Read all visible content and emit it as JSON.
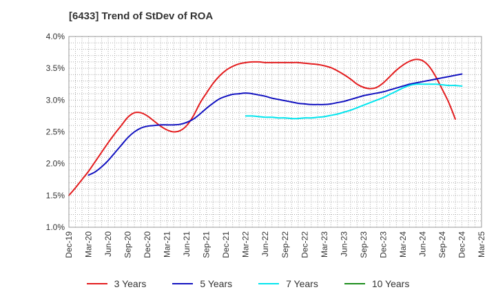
{
  "chart_data": {
    "type": "line",
    "title": "[6433]  Trend of StDev of ROA",
    "xlabel": "",
    "ylabel": "",
    "x_ticks": [
      "Dec-19",
      "Mar-20",
      "Jun-20",
      "Sep-20",
      "Dec-20",
      "Mar-21",
      "Jun-21",
      "Sep-21",
      "Dec-21",
      "Mar-22",
      "Jun-22",
      "Sep-22",
      "Dec-22",
      "Mar-23",
      "Jun-23",
      "Sep-23",
      "Dec-23",
      "Mar-24",
      "Jun-24",
      "Sep-24",
      "Dec-24",
      "Mar-25"
    ],
    "y_ticks": [
      "1.0%",
      "1.5%",
      "2.0%",
      "2.5%",
      "3.0%",
      "3.5%",
      "4.0%"
    ],
    "ylim": [
      1.0,
      4.0
    ],
    "grid": true,
    "legend_position": "bottom",
    "series": [
      {
        "name": "3 Years",
        "color": "#e31a1c",
        "points": [
          [
            "Dec-19",
            1.5
          ],
          [
            "Jan-20",
            1.62
          ],
          [
            "Feb-20",
            1.75
          ],
          [
            "Mar-20",
            1.88
          ],
          [
            "Apr-20",
            2.03
          ],
          [
            "May-20",
            2.18
          ],
          [
            "Jun-20",
            2.33
          ],
          [
            "Jul-20",
            2.47
          ],
          [
            "Aug-20",
            2.6
          ],
          [
            "Sep-20",
            2.73
          ],
          [
            "Oct-20",
            2.8
          ],
          [
            "Nov-20",
            2.8
          ],
          [
            "Dec-20",
            2.75
          ],
          [
            "Jan-21",
            2.67
          ],
          [
            "Feb-21",
            2.59
          ],
          [
            "Mar-21",
            2.53
          ],
          [
            "Apr-21",
            2.5
          ],
          [
            "May-21",
            2.52
          ],
          [
            "Jun-21",
            2.6
          ],
          [
            "Jul-21",
            2.75
          ],
          [
            "Aug-21",
            2.95
          ],
          [
            "Sep-21",
            3.11
          ],
          [
            "Oct-21",
            3.26
          ],
          [
            "Nov-21",
            3.38
          ],
          [
            "Dec-21",
            3.47
          ],
          [
            "Jan-22",
            3.53
          ],
          [
            "Feb-22",
            3.57
          ],
          [
            "Mar-22",
            3.59
          ],
          [
            "Apr-22",
            3.6
          ],
          [
            "May-22",
            3.6
          ],
          [
            "Jun-22",
            3.59
          ],
          [
            "Jul-22",
            3.59
          ],
          [
            "Aug-22",
            3.59
          ],
          [
            "Sep-22",
            3.59
          ],
          [
            "Oct-22",
            3.59
          ],
          [
            "Nov-22",
            3.59
          ],
          [
            "Dec-22",
            3.58
          ],
          [
            "Jan-23",
            3.57
          ],
          [
            "Feb-23",
            3.56
          ],
          [
            "Mar-23",
            3.54
          ],
          [
            "Apr-23",
            3.51
          ],
          [
            "May-23",
            3.46
          ],
          [
            "Jun-23",
            3.4
          ],
          [
            "Jul-23",
            3.33
          ],
          [
            "Aug-23",
            3.25
          ],
          [
            "Sep-23",
            3.2
          ],
          [
            "Oct-23",
            3.18
          ],
          [
            "Nov-23",
            3.2
          ],
          [
            "Dec-23",
            3.27
          ],
          [
            "Jan-24",
            3.37
          ],
          [
            "Feb-24",
            3.47
          ],
          [
            "Mar-24",
            3.55
          ],
          [
            "Apr-24",
            3.61
          ],
          [
            "May-24",
            3.64
          ],
          [
            "Jun-24",
            3.62
          ],
          [
            "Jul-24",
            3.53
          ],
          [
            "Aug-24",
            3.37
          ],
          [
            "Sep-24",
            3.17
          ],
          [
            "Oct-24",
            2.96
          ],
          [
            "Nov-24",
            2.7
          ]
        ]
      },
      {
        "name": "5 Years",
        "color": "#1010c0",
        "points": [
          [
            "Mar-20",
            1.82
          ],
          [
            "Apr-20",
            1.87
          ],
          [
            "May-20",
            1.95
          ],
          [
            "Jun-20",
            2.05
          ],
          [
            "Jul-20",
            2.17
          ],
          [
            "Aug-20",
            2.29
          ],
          [
            "Sep-20",
            2.41
          ],
          [
            "Oct-20",
            2.5
          ],
          [
            "Nov-20",
            2.56
          ],
          [
            "Dec-20",
            2.59
          ],
          [
            "Jan-21",
            2.6
          ],
          [
            "Feb-21",
            2.61
          ],
          [
            "Mar-21",
            2.61
          ],
          [
            "Apr-21",
            2.61
          ],
          [
            "May-21",
            2.62
          ],
          [
            "Jun-21",
            2.65
          ],
          [
            "Jul-21",
            2.7
          ],
          [
            "Aug-21",
            2.78
          ],
          [
            "Sep-21",
            2.87
          ],
          [
            "Oct-21",
            2.95
          ],
          [
            "Nov-21",
            3.02
          ],
          [
            "Dec-21",
            3.06
          ],
          [
            "Jan-22",
            3.09
          ],
          [
            "Feb-22",
            3.1
          ],
          [
            "Mar-22",
            3.11
          ],
          [
            "Apr-22",
            3.1
          ],
          [
            "May-22",
            3.08
          ],
          [
            "Jun-22",
            3.06
          ],
          [
            "Jul-22",
            3.03
          ],
          [
            "Aug-22",
            3.01
          ],
          [
            "Sep-22",
            2.99
          ],
          [
            "Oct-22",
            2.97
          ],
          [
            "Nov-22",
            2.95
          ],
          [
            "Dec-22",
            2.94
          ],
          [
            "Jan-23",
            2.93
          ],
          [
            "Feb-23",
            2.93
          ],
          [
            "Mar-23",
            2.93
          ],
          [
            "Apr-23",
            2.94
          ],
          [
            "May-23",
            2.96
          ],
          [
            "Jun-23",
            2.98
          ],
          [
            "Jul-23",
            3.01
          ],
          [
            "Aug-23",
            3.04
          ],
          [
            "Sep-23",
            3.07
          ],
          [
            "Oct-23",
            3.09
          ],
          [
            "Nov-23",
            3.11
          ],
          [
            "Dec-23",
            3.13
          ],
          [
            "Jan-24",
            3.16
          ],
          [
            "Feb-24",
            3.19
          ],
          [
            "Mar-24",
            3.22
          ],
          [
            "Apr-24",
            3.25
          ],
          [
            "May-24",
            3.27
          ],
          [
            "Jun-24",
            3.29
          ],
          [
            "Jul-24",
            3.31
          ],
          [
            "Aug-24",
            3.33
          ],
          [
            "Sep-24",
            3.35
          ],
          [
            "Oct-24",
            3.37
          ],
          [
            "Nov-24",
            3.39
          ],
          [
            "Dec-24",
            3.41
          ]
        ]
      },
      {
        "name": "7 Years",
        "color": "#00e5ee",
        "points": [
          [
            "Mar-22",
            2.75
          ],
          [
            "Apr-22",
            2.75
          ],
          [
            "May-22",
            2.74
          ],
          [
            "Jun-22",
            2.73
          ],
          [
            "Jul-22",
            2.73
          ],
          [
            "Aug-22",
            2.72
          ],
          [
            "Sep-22",
            2.72
          ],
          [
            "Oct-22",
            2.71
          ],
          [
            "Nov-22",
            2.71
          ],
          [
            "Dec-22",
            2.72
          ],
          [
            "Jan-23",
            2.72
          ],
          [
            "Feb-23",
            2.73
          ],
          [
            "Mar-23",
            2.74
          ],
          [
            "Apr-23",
            2.76
          ],
          [
            "May-23",
            2.78
          ],
          [
            "Jun-23",
            2.81
          ],
          [
            "Jul-23",
            2.84
          ],
          [
            "Aug-23",
            2.88
          ],
          [
            "Sep-23",
            2.92
          ],
          [
            "Oct-23",
            2.96
          ],
          [
            "Nov-23",
            3.0
          ],
          [
            "Dec-23",
            3.04
          ],
          [
            "Jan-24",
            3.09
          ],
          [
            "Feb-24",
            3.14
          ],
          [
            "Mar-24",
            3.19
          ],
          [
            "Apr-24",
            3.23
          ],
          [
            "May-24",
            3.25
          ],
          [
            "Jun-24",
            3.25
          ],
          [
            "Jul-24",
            3.25
          ],
          [
            "Aug-24",
            3.25
          ],
          [
            "Sep-24",
            3.24
          ],
          [
            "Oct-24",
            3.23
          ],
          [
            "Nov-24",
            3.23
          ],
          [
            "Dec-24",
            3.22
          ]
        ]
      },
      {
        "name": "10 Years",
        "color": "#1a8c1a",
        "points": []
      }
    ]
  }
}
